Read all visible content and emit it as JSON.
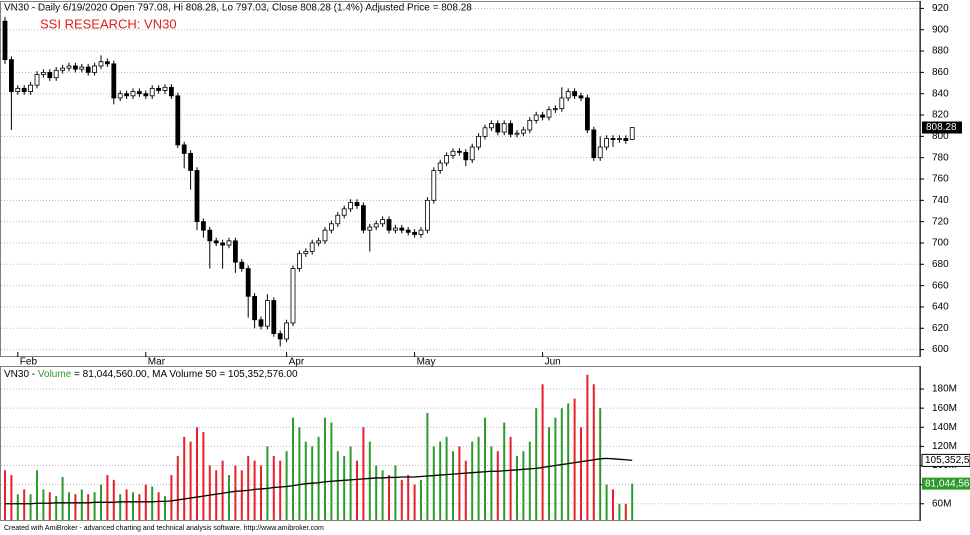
{
  "chart_data": [
    {
      "type": "candlestick",
      "title": "VN30 - Daily 6/19/2020 Open 797.08, Hi 808.28, Lo 797.03, Close 808.28 (1.4%) Adjusted Price = 808.28",
      "annotation": "SSI RESEARCH: VN30",
      "categories": [
        null,
        null,
        "Feb",
        null,
        null,
        null,
        null,
        null,
        null,
        null,
        null,
        null,
        null,
        null,
        null,
        null,
        null,
        null,
        null,
        null,
        null,
        null,
        "Mar",
        null,
        null,
        null,
        null,
        null,
        null,
        null,
        null,
        null,
        null,
        null,
        null,
        null,
        null,
        null,
        null,
        null,
        null,
        null,
        null,
        null,
        "Apr",
        null,
        null,
        null,
        null,
        null,
        null,
        null,
        null,
        null,
        null,
        null,
        null,
        null,
        null,
        null,
        null,
        null,
        null,
        null,
        "May",
        null,
        null,
        null,
        null,
        null,
        null,
        null,
        null,
        null,
        null,
        null,
        null,
        null,
        null,
        null,
        null,
        null,
        null,
        null,
        "Jun",
        null,
        null,
        null,
        null,
        null,
        null,
        null,
        null,
        null,
        null,
        null,
        null,
        null,
        null
      ],
      "open": [
        908,
        872,
        842,
        845,
        842,
        848,
        858,
        860,
        855,
        862,
        864,
        866,
        863,
        865,
        860,
        866,
        870,
        868,
        836,
        840,
        838,
        842,
        840,
        838,
        845,
        843,
        846,
        838,
        792,
        784,
        768,
        720,
        712,
        702,
        700,
        698,
        702,
        682,
        676,
        650,
        628,
        622,
        646,
        615,
        610,
        625,
        676,
        690,
        692,
        700,
        702,
        712,
        718,
        726,
        732,
        738,
        735,
        712,
        715,
        718,
        722,
        712,
        714,
        712,
        710,
        708,
        712,
        740,
        768,
        775,
        782,
        786,
        785,
        778,
        790,
        800,
        808,
        812,
        804,
        812,
        802,
        803,
        806,
        815,
        820,
        818,
        825,
        826,
        836,
        842,
        838,
        836,
        806,
        780,
        790,
        798,
        797,
        798,
        797.08
      ],
      "high": [
        912,
        875,
        848,
        848,
        851,
        861,
        863,
        863,
        865,
        867,
        869,
        869,
        868,
        868,
        869,
        876,
        873,
        871,
        843,
        843,
        845,
        845,
        843,
        848,
        848,
        849,
        849,
        841,
        795,
        787,
        771,
        723,
        715,
        705,
        703,
        705,
        705,
        685,
        679,
        653,
        631,
        652,
        649,
        618,
        628,
        679,
        693,
        695,
        703,
        705,
        715,
        721,
        729,
        735,
        741,
        741,
        738,
        718,
        721,
        725,
        725,
        717,
        717,
        715,
        713,
        715,
        743,
        771,
        778,
        785,
        789,
        789,
        788,
        793,
        803,
        811,
        815,
        815,
        815,
        815,
        806,
        809,
        818,
        823,
        823,
        828,
        829,
        846,
        845,
        845,
        841,
        839,
        809,
        800,
        801,
        801,
        801,
        801,
        808.28
      ],
      "low": [
        868,
        806,
        839,
        839,
        839,
        845,
        855,
        852,
        852,
        859,
        861,
        860,
        860,
        857,
        857,
        863,
        865,
        830,
        833,
        835,
        835,
        837,
        835,
        835,
        840,
        840,
        835,
        789,
        770,
        750,
        712,
        705,
        676,
        697,
        676,
        695,
        672,
        673,
        630,
        620,
        619,
        619,
        612,
        603,
        607,
        622,
        673,
        687,
        689,
        697,
        699,
        709,
        715,
        723,
        729,
        732,
        709,
        692,
        712,
        715,
        709,
        709,
        709,
        707,
        705,
        705,
        709,
        737,
        765,
        772,
        779,
        782,
        772,
        775,
        787,
        797,
        805,
        801,
        801,
        799,
        799,
        800,
        803,
        812,
        815,
        815,
        822,
        823,
        833,
        835,
        833,
        803,
        777,
        777,
        787,
        790,
        794,
        793,
        797.03
      ],
      "close": [
        872,
        842,
        845,
        842,
        848,
        858,
        860,
        855,
        862,
        864,
        866,
        863,
        865,
        860,
        866,
        870,
        868,
        836,
        840,
        838,
        842,
        840,
        838,
        845,
        843,
        846,
        838,
        792,
        784,
        768,
        720,
        712,
        702,
        700,
        698,
        702,
        682,
        676,
        650,
        628,
        622,
        646,
        615,
        610,
        625,
        676,
        690,
        692,
        700,
        702,
        712,
        718,
        726,
        732,
        738,
        735,
        712,
        715,
        718,
        722,
        712,
        714,
        712,
        710,
        708,
        712,
        740,
        768,
        775,
        782,
        786,
        785,
        778,
        790,
        800,
        808,
        812,
        804,
        812,
        802,
        803,
        806,
        815,
        820,
        818,
        825,
        826,
        836,
        842,
        838,
        836,
        806,
        780,
        790,
        798,
        797,
        798,
        796,
        808.28
      ],
      "last_label": "808.28",
      "up_color": "#ffffff",
      "down_color": "#000000",
      "ylim": [
        594,
        926
      ],
      "yticks": [
        600,
        620,
        640,
        660,
        680,
        700,
        720,
        740,
        760,
        780,
        800,
        820,
        840,
        860,
        880,
        900,
        920
      ],
      "grid": true
    },
    {
      "type": "volume",
      "title_parts": [
        "VN30 - ",
        "Volume",
        " = 81,044,560.00, MA Volume 50 = 105,352,576.00"
      ],
      "series": [
        {
          "name": "Volume",
          "up_color": "#2e9a2e",
          "down_color": "#e8202a",
          "last_label": "81,044,56",
          "values": [
            95,
            90,
            70,
            75,
            70,
            95,
            75,
            72,
            68,
            88,
            72,
            70,
            75,
            70,
            72,
            80,
            90,
            85,
            70,
            75,
            72,
            70,
            80,
            78,
            72,
            68,
            90,
            110,
            130,
            125,
            140,
            135,
            100,
            95,
            105,
            90,
            100,
            95,
            110,
            105,
            100,
            120,
            110,
            105,
            115,
            150,
            140,
            125,
            120,
            130,
            150,
            145,
            115,
            110,
            120,
            105,
            140,
            125,
            100,
            95,
            90,
            100,
            85,
            90,
            80,
            85,
            155,
            120,
            125,
            130,
            115,
            120,
            105,
            125,
            130,
            150,
            120,
            115,
            145,
            130,
            110,
            115,
            125,
            160,
            185,
            140,
            150,
            160,
            165,
            170,
            140,
            195,
            185,
            160,
            80,
            75,
            60,
            60,
            81.04456
          ]
        },
        {
          "name": "MA Volume 50",
          "color": "#000000",
          "last_label": "105,352,5",
          "values": [
            60,
            60,
            60,
            60,
            60,
            60.5,
            60.5,
            60.5,
            61,
            61,
            61,
            61,
            61,
            61,
            61.5,
            61.5,
            61.5,
            61.5,
            62,
            62,
            62,
            62,
            62,
            62,
            62.5,
            62.5,
            63,
            64,
            65,
            66,
            67,
            68,
            69,
            70,
            71,
            72,
            73,
            73.5,
            74,
            75,
            75.5,
            76,
            77,
            77.5,
            78,
            79,
            80,
            81,
            81.5,
            82,
            83,
            83.5,
            84,
            84.5,
            85,
            85.5,
            86,
            86.5,
            87,
            87,
            87.5,
            87.5,
            88,
            88,
            88,
            88.5,
            89,
            89.5,
            90,
            90.5,
            91,
            91.5,
            92,
            92.5,
            93,
            93.5,
            94,
            94,
            94.5,
            95,
            95.5,
            96,
            96.5,
            97,
            98,
            99,
            100,
            101,
            102,
            103,
            104,
            105,
            106,
            107,
            107.5,
            107,
            106.5,
            106,
            105.352576
          ]
        }
      ],
      "ylim": [
        43,
        202
      ],
      "yticks": [
        {
          "value": 60,
          "label": "60M"
        },
        {
          "value": 80,
          "label": "80M"
        },
        {
          "value": 100,
          "label": "100M"
        },
        {
          "value": 120,
          "label": "120M"
        },
        {
          "value": 140,
          "label": "140M"
        },
        {
          "value": 160,
          "label": "160M"
        },
        {
          "value": 180,
          "label": "180M"
        }
      ],
      "grid": true
    }
  ],
  "footer": "Created with AmiBroker - advanced charting and technical analysis software. http://www.amibroker.com"
}
